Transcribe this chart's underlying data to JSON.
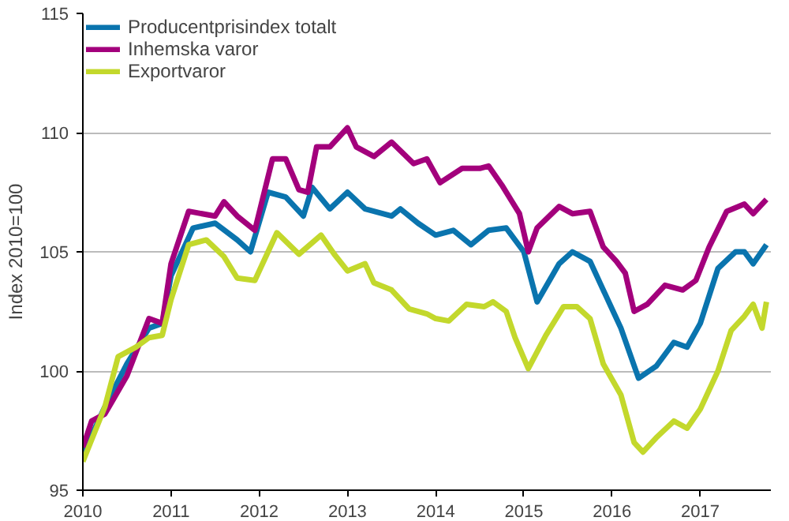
{
  "chart_data": {
    "type": "line",
    "ylabel": "Index 2010=100",
    "xlim": [
      2010,
      2017.8
    ],
    "xticks": [
      {
        "value": 2010,
        "label": "2010"
      },
      {
        "value": 2011,
        "label": "2011"
      },
      {
        "value": 2012,
        "label": "2012"
      },
      {
        "value": 2013,
        "label": "2013"
      },
      {
        "value": 2014,
        "label": "2014"
      },
      {
        "value": 2015,
        "label": "2015"
      },
      {
        "value": 2016,
        "label": "2016"
      },
      {
        "value": 2017,
        "label": "2017"
      }
    ],
    "ylim": [
      95,
      115
    ],
    "yticks": [
      95,
      100,
      105,
      110,
      115
    ],
    "grid": "y",
    "legend": "top left",
    "line_style": "solid",
    "marker": "none",
    "series": [
      {
        "name": "Producentprisindex totalt",
        "color": "#0a74ae",
        "x": [
          2010.0,
          2010.25,
          2010.5,
          2010.75,
          2010.9,
          2011.0,
          2011.25,
          2011.5,
          2011.75,
          2011.9,
          2012.1,
          2012.3,
          2012.5,
          2012.6,
          2012.8,
          2013.0,
          2013.2,
          2013.5,
          2013.6,
          2013.8,
          2014.0,
          2014.2,
          2014.4,
          2014.6,
          2014.8,
          2015.0,
          2015.15,
          2015.4,
          2015.55,
          2015.75,
          2016.0,
          2016.1,
          2016.3,
          2016.5,
          2016.7,
          2016.85,
          2017.0,
          2017.2,
          2017.4,
          2017.5,
          2017.6,
          2017.75
        ],
        "values": [
          96.5,
          98.5,
          100.3,
          101.8,
          102.0,
          104.0,
          106.0,
          106.2,
          105.5,
          105.0,
          107.5,
          107.3,
          106.5,
          107.7,
          106.8,
          107.5,
          106.8,
          106.5,
          106.8,
          106.2,
          105.7,
          105.9,
          105.3,
          105.9,
          106.0,
          105.0,
          102.9,
          104.5,
          105.0,
          104.6,
          102.6,
          101.8,
          99.7,
          100.2,
          101.2,
          101.0,
          102.0,
          104.3,
          105.0,
          105.0,
          104.5,
          105.3
        ]
      },
      {
        "name": "Inhemska varor",
        "color": "#a3007c",
        "x": [
          2010.0,
          2010.1,
          2010.25,
          2010.5,
          2010.75,
          2010.9,
          2011.0,
          2011.2,
          2011.5,
          2011.6,
          2011.75,
          2011.95,
          2012.15,
          2012.3,
          2012.45,
          2012.55,
          2012.65,
          2012.8,
          2013.0,
          2013.1,
          2013.3,
          2013.5,
          2013.75,
          2013.9,
          2014.05,
          2014.3,
          2014.5,
          2014.6,
          2014.75,
          2014.95,
          2015.05,
          2015.15,
          2015.4,
          2015.55,
          2015.75,
          2015.9,
          2016.05,
          2016.15,
          2016.25,
          2016.4,
          2016.6,
          2016.8,
          2016.95,
          2017.1,
          2017.3,
          2017.5,
          2017.6,
          2017.75
        ],
        "values": [
          96.8,
          97.9,
          98.2,
          99.8,
          102.2,
          102.0,
          104.5,
          106.7,
          106.5,
          107.1,
          106.5,
          105.9,
          108.9,
          108.9,
          107.6,
          107.5,
          109.4,
          109.4,
          110.2,
          109.4,
          109.0,
          109.6,
          108.7,
          108.9,
          107.9,
          108.5,
          108.5,
          108.6,
          107.8,
          106.6,
          105.0,
          106.0,
          106.9,
          106.6,
          106.7,
          105.2,
          104.6,
          104.1,
          102.5,
          102.8,
          103.6,
          103.4,
          103.8,
          105.2,
          106.7,
          107.0,
          106.6,
          107.2
        ]
      },
      {
        "name": "Exportvaror",
        "color": "#c3d82c",
        "x": [
          2010.0,
          2010.25,
          2010.4,
          2010.6,
          2010.75,
          2010.9,
          2011.0,
          2011.2,
          2011.4,
          2011.6,
          2011.75,
          2011.95,
          2012.2,
          2012.45,
          2012.7,
          2012.85,
          2013.0,
          2013.2,
          2013.3,
          2013.5,
          2013.7,
          2013.9,
          2014.0,
          2014.15,
          2014.35,
          2014.55,
          2014.65,
          2014.8,
          2014.9,
          2015.05,
          2015.25,
          2015.45,
          2015.6,
          2015.75,
          2015.9,
          2016.1,
          2016.25,
          2016.35,
          2016.5,
          2016.7,
          2016.85,
          2017.0,
          2017.2,
          2017.35,
          2017.5,
          2017.6,
          2017.7,
          2017.75
        ],
        "values": [
          96.2,
          98.5,
          100.6,
          101.0,
          101.4,
          101.5,
          103.0,
          105.3,
          105.5,
          104.8,
          103.9,
          103.8,
          105.8,
          104.9,
          105.7,
          104.9,
          104.2,
          104.5,
          103.7,
          103.4,
          102.6,
          102.4,
          102.2,
          102.1,
          102.8,
          102.7,
          102.9,
          102.5,
          101.4,
          100.1,
          101.5,
          102.7,
          102.7,
          102.2,
          100.3,
          99.0,
          97.0,
          96.6,
          97.2,
          97.9,
          97.6,
          98.4,
          100.0,
          101.7,
          102.3,
          102.8,
          101.8,
          102.9
        ]
      }
    ]
  }
}
